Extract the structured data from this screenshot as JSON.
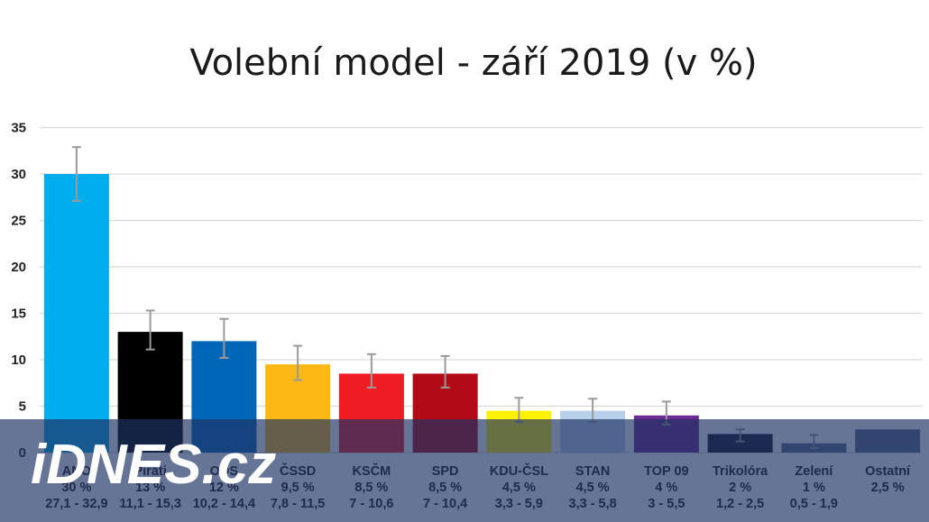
{
  "colors": {
    "banner": "#1e3264",
    "banner_opacity": 0.68,
    "grid": "#d9d9d9",
    "error_bar": "#9a9a9a"
  },
  "logo": {
    "text": "iDNES.cz"
  },
  "chart_data": {
    "type": "bar",
    "title": "Volební model - září 2019 (v %)",
    "xlabel": "",
    "ylabel": "",
    "ylim": [
      0,
      35
    ],
    "yticks": [
      0,
      5,
      10,
      15,
      20,
      25,
      30,
      35
    ],
    "grid": true,
    "categories": [
      "ANO",
      "Piráti",
      "ODS",
      "ČSSD",
      "KSČM",
      "SPD",
      "KDU-ČSL",
      "STAN",
      "TOP 09",
      "Trikolóra",
      "Zelení",
      "Ostatní"
    ],
    "values": [
      30,
      13,
      12,
      9.5,
      8.5,
      8.5,
      4.5,
      4.5,
      4,
      2,
      1,
      2.5
    ],
    "value_labels": [
      "30 %",
      "13 %",
      "12 %",
      "9,5 %",
      "8,5 %",
      "8,5 %",
      "4,5 %",
      "4,5 %",
      "4 %",
      "2 %",
      "1 %",
      "2,5 %"
    ],
    "range_labels": [
      "27,1 - 32,9",
      "11,1 - 15,3",
      "10,2 - 14,4",
      "7,8 - 11,5",
      "7 - 10,6",
      "7 - 10,4",
      "3,3 - 5,9",
      "3,3 - 5,8",
      "3 - 5,5",
      "1,2 - 2,5",
      "0,5 - 1,9",
      ""
    ],
    "error_low": [
      27.1,
      11.1,
      10.2,
      7.8,
      7,
      7,
      3.3,
      3.3,
      3,
      1.2,
      0.5,
      null
    ],
    "error_high": [
      32.9,
      15.3,
      14.4,
      11.5,
      10.6,
      10.4,
      5.9,
      5.8,
      5.5,
      2.5,
      1.9,
      null
    ],
    "colors": [
      "#00aeef",
      "#000000",
      "#0066b8",
      "#fdb813",
      "#ee1c25",
      "#b20a16",
      "#fff200",
      "#b7d1ea",
      "#6a2c91",
      "#1a1a2e",
      "#5e6c8a",
      "#5e6c8a"
    ]
  }
}
